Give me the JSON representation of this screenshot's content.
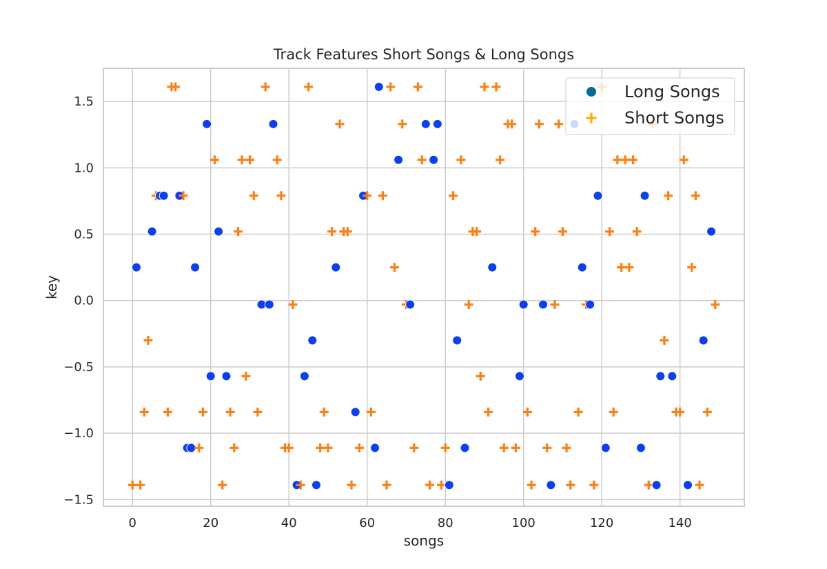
{
  "chart_data": {
    "type": "scatter",
    "title": "Track Features Short Songs & Long Songs",
    "xlabel": "songs",
    "ylabel": "key",
    "xlim": [
      -7.45,
      156.45
    ],
    "ylim": [
      -1.55,
      1.75
    ],
    "xticks": [
      0,
      20,
      40,
      60,
      80,
      100,
      120,
      140
    ],
    "xtick_labels": [
      "0",
      "20",
      "40",
      "60",
      "80",
      "100",
      "120",
      "140"
    ],
    "yticks": [
      -1.5,
      -1.0,
      -0.5,
      0.0,
      0.5,
      1.0,
      1.5
    ],
    "ytick_labels": [
      "−1.5",
      "−1.0",
      "−0.5",
      "0.0",
      "0.5",
      "1.0",
      "1.5"
    ],
    "grid": true,
    "legend_position": "upper-right",
    "series": [
      {
        "name": "Long Songs",
        "marker": "circle",
        "color": "#0b3ff5",
        "legend_color": "#006c9e",
        "points": [
          [
            1,
            0.25
          ],
          [
            5,
            0.52
          ],
          [
            7,
            0.79
          ],
          [
            8,
            0.79
          ],
          [
            12,
            0.79
          ],
          [
            14,
            -1.11
          ],
          [
            15,
            -1.11
          ],
          [
            16,
            0.25
          ],
          [
            19,
            1.33
          ],
          [
            20,
            -0.57
          ],
          [
            22,
            0.52
          ],
          [
            24,
            -0.57
          ],
          [
            33,
            -0.03
          ],
          [
            35,
            -0.03
          ],
          [
            36,
            1.33
          ],
          [
            42,
            -1.39
          ],
          [
            44,
            -0.57
          ],
          [
            46,
            -0.3
          ],
          [
            47,
            -1.39
          ],
          [
            52,
            0.25
          ],
          [
            57,
            -0.84
          ],
          [
            59,
            0.79
          ],
          [
            62,
            -1.11
          ],
          [
            63,
            1.61
          ],
          [
            68,
            1.06
          ],
          [
            71,
            -0.03
          ],
          [
            75,
            1.33
          ],
          [
            77,
            1.06
          ],
          [
            78,
            1.33
          ],
          [
            81,
            -1.39
          ],
          [
            83,
            -0.3
          ],
          [
            85,
            -1.11
          ],
          [
            92,
            0.25
          ],
          [
            99,
            -0.57
          ],
          [
            100,
            -0.03
          ],
          [
            105,
            -0.03
          ],
          [
            107,
            -1.39
          ],
          [
            113,
            1.33
          ],
          [
            115,
            0.25
          ],
          [
            117,
            -0.03
          ],
          [
            119,
            0.79
          ],
          [
            121,
            -1.11
          ],
          [
            130,
            -1.11
          ],
          [
            131,
            0.79
          ],
          [
            134,
            -1.39
          ],
          [
            135,
            -0.57
          ],
          [
            138,
            -0.57
          ],
          [
            142,
            -1.39
          ],
          [
            146,
            -0.3
          ],
          [
            148,
            0.52
          ]
        ]
      },
      {
        "name": "Short Songs",
        "marker": "plus",
        "color": "#ff7f0e",
        "legend_color": "#ffae00",
        "points": [
          [
            0,
            -1.39
          ],
          [
            2,
            -1.39
          ],
          [
            3,
            -0.84
          ],
          [
            4,
            -0.3
          ],
          [
            6,
            0.79
          ],
          [
            9,
            -0.84
          ],
          [
            10,
            1.61
          ],
          [
            11,
            1.61
          ],
          [
            13,
            0.79
          ],
          [
            17,
            -1.11
          ],
          [
            18,
            -0.84
          ],
          [
            21,
            1.06
          ],
          [
            23,
            -1.39
          ],
          [
            25,
            -0.84
          ],
          [
            26,
            -1.11
          ],
          [
            27,
            0.52
          ],
          [
            28,
            1.06
          ],
          [
            29,
            -0.57
          ],
          [
            30,
            1.06
          ],
          [
            31,
            0.79
          ],
          [
            32,
            -0.84
          ],
          [
            34,
            1.61
          ],
          [
            37,
            1.06
          ],
          [
            38,
            0.79
          ],
          [
            39,
            -1.11
          ],
          [
            40,
            -1.11
          ],
          [
            41,
            -0.03
          ],
          [
            43,
            -1.39
          ],
          [
            45,
            1.61
          ],
          [
            48,
            -1.11
          ],
          [
            49,
            -0.84
          ],
          [
            50,
            -1.11
          ],
          [
            51,
            0.52
          ],
          [
            53,
            1.33
          ],
          [
            54,
            0.52
          ],
          [
            55,
            0.52
          ],
          [
            56,
            -1.39
          ],
          [
            58,
            -1.11
          ],
          [
            60,
            0.79
          ],
          [
            61,
            -0.84
          ],
          [
            64,
            0.79
          ],
          [
            65,
            -1.39
          ],
          [
            66,
            1.61
          ],
          [
            67,
            0.25
          ],
          [
            69,
            1.33
          ],
          [
            70,
            -0.03
          ],
          [
            72,
            -1.11
          ],
          [
            73,
            1.61
          ],
          [
            74,
            1.06
          ],
          [
            76,
            -1.39
          ],
          [
            79,
            -1.39
          ],
          [
            80,
            -1.11
          ],
          [
            82,
            0.79
          ],
          [
            84,
            1.06
          ],
          [
            86,
            -0.03
          ],
          [
            87,
            0.52
          ],
          [
            88,
            0.52
          ],
          [
            89,
            -0.57
          ],
          [
            90,
            1.61
          ],
          [
            91,
            -0.84
          ],
          [
            93,
            1.61
          ],
          [
            94,
            1.06
          ],
          [
            95,
            -1.11
          ],
          [
            96,
            1.33
          ],
          [
            97,
            1.33
          ],
          [
            98,
            -1.11
          ],
          [
            101,
            -0.84
          ],
          [
            102,
            -1.39
          ],
          [
            103,
            0.52
          ],
          [
            104,
            1.33
          ],
          [
            106,
            -1.11
          ],
          [
            108,
            -0.03
          ],
          [
            109,
            1.33
          ],
          [
            110,
            0.52
          ],
          [
            111,
            -1.11
          ],
          [
            112,
            -1.39
          ],
          [
            114,
            -0.84
          ],
          [
            116,
            -0.03
          ],
          [
            118,
            -1.39
          ],
          [
            120,
            1.61
          ],
          [
            122,
            0.52
          ],
          [
            123,
            -0.84
          ],
          [
            124,
            1.06
          ],
          [
            125,
            0.25
          ],
          [
            126,
            1.06
          ],
          [
            127,
            0.25
          ],
          [
            128,
            1.06
          ],
          [
            129,
            0.52
          ],
          [
            132,
            -1.39
          ],
          [
            133,
            1.33
          ],
          [
            136,
            -0.3
          ],
          [
            137,
            0.79
          ],
          [
            139,
            -0.84
          ],
          [
            140,
            -0.84
          ],
          [
            141,
            1.06
          ],
          [
            143,
            0.25
          ],
          [
            144,
            0.79
          ],
          [
            145,
            -1.39
          ],
          [
            147,
            -0.84
          ],
          [
            149,
            -0.03
          ]
        ]
      }
    ]
  }
}
